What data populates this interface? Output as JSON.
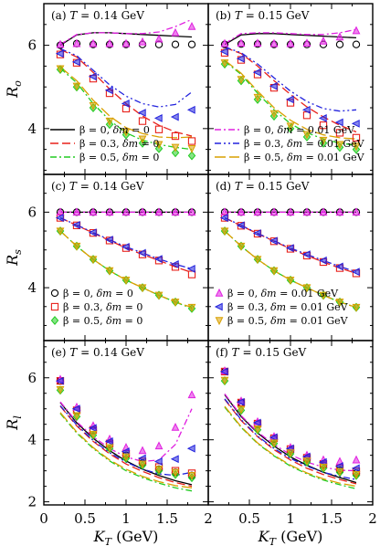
{
  "figure": {
    "x_axis_label": "K_T (GeV)",
    "x_ticks": [
      "0",
      "0.5",
      "1",
      "1.5",
      "2"
    ],
    "row_labels": [
      "R_o",
      "R_s",
      "R_l"
    ],
    "row_y_ticks": [
      [
        "4",
        "6"
      ],
      [
        "4",
        "6"
      ],
      [
        "2",
        "4",
        "6"
      ]
    ]
  },
  "legends": {
    "lines_dm0": [
      "β = 0, δm = 0",
      "β = 0.3, δm = 0",
      "β = 0.5, δm = 0"
    ],
    "lines_dm001": [
      "β = 0, δm = 0.01 GeV",
      "β = 0.3, δm = 0.01 GeV",
      "β = 0.5, δm = 0.01 GeV"
    ],
    "symbols_dm0": [
      "β = 0, δm = 0",
      "β = 0.3, δm = 0",
      "β = 0.5, δm = 0"
    ],
    "symbols_dm001": [
      "β = 0, δm = 0.01 GeV",
      "β = 0.3, δm = 0.01 GeV",
      "β = 0.5, δm = 0.01 GeV"
    ]
  },
  "colors": {
    "beta0_dm0": "#000000",
    "beta03_dm0": "#e8201a",
    "beta05_dm0": "#22cc22",
    "beta0_dm001": "#e020e0",
    "beta03_dm001": "#2222dd",
    "beta05_dm001": "#d9a000"
  },
  "chart_data": [
    {
      "type": "line",
      "panel": "(a) T = 0.14 GeV",
      "ylabel": "R_o",
      "xlim": [
        0,
        2
      ],
      "ylim": [
        2.9,
        7.0
      ],
      "x": [
        0.2,
        0.4,
        0.6,
        0.8,
        1.0,
        1.2,
        1.4,
        1.6,
        1.8
      ],
      "series": [
        {
          "name": "β = 0, δm = 0",
          "line": [
            6.0,
            6.25,
            6.3,
            6.3,
            6.28,
            6.26,
            6.24,
            6.22,
            6.2
          ],
          "symbols": [
            6.0,
            6.04,
            6.02,
            6.02,
            6.02,
            6.02,
            6.02,
            6.02,
            6.02
          ]
        },
        {
          "name": "β = 0.3, δm = 0",
          "line": [
            5.9,
            5.72,
            5.35,
            4.95,
            4.6,
            4.3,
            4.08,
            3.92,
            3.82
          ],
          "symbols": [
            5.78,
            5.58,
            5.2,
            4.85,
            4.48,
            4.18,
            3.98,
            3.82,
            3.7
          ]
        },
        {
          "name": "β = 0.5, δm = 0",
          "line": [
            5.45,
            5.1,
            4.6,
            4.2,
            3.9,
            3.72,
            3.62,
            3.55,
            3.5
          ],
          "symbols": [
            5.42,
            5.0,
            4.5,
            4.1,
            3.85,
            3.65,
            3.52,
            3.42,
            3.35
          ]
        },
        {
          "name": "β = 0, δm = 0.01 GeV",
          "line": [
            6.02,
            6.26,
            6.3,
            6.3,
            6.28,
            6.28,
            6.32,
            6.45,
            6.62
          ],
          "symbols": [
            6.02,
            6.04,
            6.04,
            6.04,
            6.04,
            6.08,
            6.15,
            6.3,
            6.45
          ]
        },
        {
          "name": "β = 0.3, δm = 0.01 GeV",
          "line": [
            5.92,
            5.75,
            5.4,
            5.05,
            4.78,
            4.6,
            4.52,
            4.58,
            4.88
          ],
          "symbols": [
            5.8,
            5.6,
            5.25,
            4.92,
            4.6,
            4.38,
            4.25,
            4.28,
            4.45
          ]
        },
        {
          "name": "β = 0.5, δm = 0.01 GeV",
          "line": [
            5.48,
            5.15,
            4.68,
            4.3,
            4.02,
            3.88,
            3.8,
            3.78,
            3.8
          ],
          "symbols": [
            5.44,
            5.02,
            4.55,
            4.18,
            3.92,
            3.75,
            3.62,
            3.55,
            3.52
          ]
        }
      ]
    },
    {
      "type": "line",
      "panel": "(b) T = 0.15 GeV",
      "ylabel": "R_o",
      "xlim": [
        0,
        2
      ],
      "ylim": [
        2.9,
        7.0
      ],
      "x": [
        0.2,
        0.4,
        0.6,
        0.8,
        1.0,
        1.2,
        1.4,
        1.6,
        1.8
      ],
      "series": [
        {
          "name": "β = 0, δm = 0",
          "line": [
            6.02,
            6.25,
            6.28,
            6.28,
            6.26,
            6.24,
            6.22,
            6.2,
            6.18
          ],
          "symbols": [
            6.02,
            6.03,
            6.03,
            6.02,
            6.02,
            6.02,
            6.02,
            6.02,
            6.02
          ]
        },
        {
          "name": "β = 0.3, δm = 0",
          "line": [
            5.95,
            5.8,
            5.5,
            5.15,
            4.82,
            4.52,
            4.28,
            4.08,
            3.92
          ],
          "symbols": [
            5.82,
            5.65,
            5.3,
            4.98,
            4.62,
            4.32,
            4.08,
            3.9,
            3.78
          ]
        },
        {
          "name": "β = 0.5, δm = 0",
          "line": [
            5.62,
            5.3,
            4.85,
            4.45,
            4.12,
            3.9,
            3.75,
            3.65,
            3.6
          ],
          "symbols": [
            5.55,
            5.15,
            4.7,
            4.3,
            4.0,
            3.8,
            3.65,
            3.55,
            3.5
          ]
        },
        {
          "name": "β = 0, δm = 0.01 GeV",
          "line": [
            6.04,
            6.28,
            6.3,
            6.3,
            6.28,
            6.26,
            6.26,
            6.3,
            6.38
          ],
          "symbols": [
            6.04,
            6.05,
            6.05,
            6.04,
            6.04,
            6.05,
            6.1,
            6.2,
            6.35
          ]
        },
        {
          "name": "β = 0.3, δm = 0.01 GeV",
          "line": [
            5.96,
            5.82,
            5.55,
            5.22,
            4.9,
            4.65,
            4.48,
            4.42,
            4.45
          ],
          "symbols": [
            5.85,
            5.68,
            5.35,
            5.02,
            4.7,
            4.45,
            4.25,
            4.15,
            4.12
          ]
        },
        {
          "name": "β = 0.5, δm = 0.01 GeV",
          "line": [
            5.64,
            5.33,
            4.9,
            4.5,
            4.2,
            3.98,
            3.85,
            3.78,
            3.75
          ],
          "symbols": [
            5.58,
            5.18,
            4.75,
            4.36,
            4.06,
            3.86,
            3.72,
            3.62,
            3.58
          ]
        }
      ]
    },
    {
      "type": "line",
      "panel": "(c) T = 0.14 GeV",
      "ylabel": "R_s",
      "xlim": [
        0,
        2
      ],
      "ylim": [
        2.6,
        7.0
      ],
      "x": [
        0.2,
        0.4,
        0.6,
        0.8,
        1.0,
        1.2,
        1.4,
        1.6,
        1.8
      ],
      "series": [
        {
          "name": "β = 0, δm = 0",
          "line": [
            6.0,
            6.0,
            6.0,
            6.0,
            6.0,
            6.0,
            6.0,
            6.0,
            6.0
          ],
          "symbols": [
            6.0,
            6.0,
            6.0,
            6.0,
            6.0,
            6.0,
            6.0,
            6.0,
            6.0
          ]
        },
        {
          "name": "β = 0.3, δm = 0",
          "line": [
            5.85,
            5.65,
            5.45,
            5.25,
            5.05,
            4.88,
            4.72,
            4.55,
            4.4
          ],
          "symbols": [
            5.85,
            5.65,
            5.45,
            5.25,
            5.05,
            4.88,
            4.72,
            4.55,
            4.35
          ]
        },
        {
          "name": "β = 0.5, δm = 0",
          "line": [
            5.5,
            5.1,
            4.75,
            4.45,
            4.2,
            4.0,
            3.8,
            3.62,
            3.45
          ],
          "symbols": [
            5.5,
            5.1,
            4.75,
            4.45,
            4.2,
            4.0,
            3.8,
            3.62,
            3.45
          ]
        },
        {
          "name": "β = 0, δm = 0.01 GeV",
          "line": [
            6.0,
            6.0,
            6.0,
            6.0,
            6.0,
            6.0,
            6.0,
            6.0,
            6.0
          ],
          "symbols": [
            6.0,
            6.0,
            6.0,
            6.0,
            6.0,
            6.0,
            6.0,
            6.0,
            6.0
          ]
        },
        {
          "name": "β = 0.3, δm = 0.01 GeV",
          "line": [
            5.85,
            5.66,
            5.46,
            5.27,
            5.08,
            4.92,
            4.76,
            4.62,
            4.5
          ],
          "symbols": [
            5.85,
            5.66,
            5.46,
            5.27,
            5.08,
            4.92,
            4.76,
            4.62,
            4.5
          ]
        },
        {
          "name": "β = 0.5, δm = 0.01 GeV",
          "line": [
            5.5,
            5.1,
            4.75,
            4.45,
            4.2,
            4.0,
            3.8,
            3.62,
            3.48
          ],
          "symbols": [
            5.5,
            5.1,
            4.75,
            4.45,
            4.2,
            4.0,
            3.8,
            3.62,
            3.48
          ]
        }
      ]
    },
    {
      "type": "line",
      "panel": "(d) T = 0.15 GeV",
      "ylabel": "R_s",
      "xlim": [
        0,
        2
      ],
      "ylim": [
        2.6,
        7.0
      ],
      "x": [
        0.2,
        0.4,
        0.6,
        0.8,
        1.0,
        1.2,
        1.4,
        1.6,
        1.8
      ],
      "series": [
        {
          "name": "β = 0, δm = 0",
          "line": [
            6.0,
            6.0,
            6.0,
            6.0,
            6.0,
            6.0,
            6.0,
            6.0,
            6.0
          ],
          "symbols": [
            6.0,
            6.0,
            6.0,
            6.0,
            6.0,
            6.0,
            6.0,
            6.0,
            6.0
          ]
        },
        {
          "name": "β = 0.3, δm = 0",
          "line": [
            5.85,
            5.64,
            5.43,
            5.23,
            5.03,
            4.85,
            4.68,
            4.52,
            4.38
          ],
          "symbols": [
            5.85,
            5.64,
            5.43,
            5.23,
            5.03,
            4.85,
            4.68,
            4.52,
            4.38
          ]
        },
        {
          "name": "β = 0.5, δm = 0",
          "line": [
            5.5,
            5.1,
            4.75,
            4.45,
            4.2,
            4.0,
            3.8,
            3.62,
            3.48
          ],
          "symbols": [
            5.5,
            5.1,
            4.75,
            4.45,
            4.2,
            4.0,
            3.8,
            3.62,
            3.48
          ]
        },
        {
          "name": "β = 0, δm = 0.01 GeV",
          "line": [
            6.0,
            6.0,
            6.0,
            6.0,
            6.0,
            6.0,
            6.0,
            6.0,
            6.0
          ],
          "symbols": [
            6.0,
            6.0,
            6.0,
            6.0,
            6.0,
            6.0,
            6.0,
            6.0,
            6.0
          ]
        },
        {
          "name": "β = 0.3, δm = 0.01 GeV",
          "line": [
            5.85,
            5.65,
            5.44,
            5.24,
            5.05,
            4.88,
            4.72,
            4.56,
            4.42
          ],
          "symbols": [
            5.85,
            5.65,
            5.44,
            5.24,
            5.05,
            4.88,
            4.72,
            4.56,
            4.42
          ]
        },
        {
          "name": "β = 0.5, δm = 0.01 GeV",
          "line": [
            5.5,
            5.1,
            4.75,
            4.45,
            4.2,
            4.0,
            3.8,
            3.62,
            3.48
          ],
          "symbols": [
            5.5,
            5.1,
            4.75,
            4.45,
            4.2,
            4.0,
            3.8,
            3.62,
            3.48
          ]
        }
      ]
    },
    {
      "type": "line",
      "panel": "(e) T = 0.14 GeV",
      "ylabel": "R_l",
      "xlim": [
        0,
        2
      ],
      "ylim": [
        1.9,
        7.2
      ],
      "x": [
        0.2,
        0.4,
        0.6,
        0.8,
        1.0,
        1.2,
        1.4,
        1.6,
        1.8
      ],
      "series": [
        {
          "name": "β = 0, δm = 0",
          "line": [
            5.2,
            4.55,
            4.05,
            3.65,
            3.32,
            3.05,
            2.85,
            2.68,
            2.55
          ],
          "symbols": [
            5.9,
            4.95,
            4.3,
            3.85,
            3.5,
            3.25,
            3.05,
            2.95,
            2.85
          ]
        },
        {
          "name": "β = 0.3, δm = 0",
          "line": [
            5.08,
            4.45,
            3.95,
            3.55,
            3.22,
            2.98,
            2.78,
            2.62,
            2.5
          ],
          "symbols": [
            5.9,
            4.95,
            4.32,
            3.88,
            3.55,
            3.3,
            3.12,
            3.0,
            2.92
          ]
        },
        {
          "name": "β = 0.5, δm = 0",
          "line": [
            4.85,
            4.22,
            3.72,
            3.32,
            3.0,
            2.78,
            2.6,
            2.45,
            2.35
          ],
          "symbols": [
            5.6,
            4.75,
            4.15,
            3.72,
            3.4,
            3.18,
            3.0,
            2.88,
            2.78
          ]
        },
        {
          "name": "β = 0, δm = 0.01 GeV",
          "line": [
            5.22,
            4.58,
            4.1,
            3.72,
            3.45,
            3.3,
            3.35,
            3.85,
            5.0
          ],
          "symbols": [
            5.95,
            5.05,
            4.45,
            4.02,
            3.75,
            3.65,
            3.8,
            4.4,
            5.45
          ]
        },
        {
          "name": "β = 0.3, δm = 0.01 GeV",
          "line": [
            5.1,
            4.48,
            3.98,
            3.58,
            3.28,
            3.05,
            2.9,
            2.85,
            2.95
          ],
          "symbols": [
            5.9,
            5.0,
            4.38,
            3.95,
            3.62,
            3.4,
            3.3,
            3.38,
            3.72
          ]
        },
        {
          "name": "β = 0.5, δm = 0.01 GeV",
          "line": [
            4.88,
            4.25,
            3.75,
            3.35,
            3.05,
            2.82,
            2.65,
            2.52,
            2.45
          ],
          "symbols": [
            5.62,
            4.78,
            4.18,
            3.75,
            3.45,
            3.22,
            3.05,
            2.95,
            2.85
          ]
        }
      ]
    },
    {
      "type": "line",
      "panel": "(f) T = 0.15 GeV",
      "ylabel": "R_l",
      "xlim": [
        0,
        2
      ],
      "ylim": [
        1.9,
        7.2
      ],
      "x": [
        0.2,
        0.4,
        0.6,
        0.8,
        1.0,
        1.2,
        1.4,
        1.6,
        1.8
      ],
      "series": [
        {
          "name": "β = 0, δm = 0",
          "line": [
            5.45,
            4.75,
            4.22,
            3.8,
            3.45,
            3.18,
            2.95,
            2.78,
            2.62
          ],
          "symbols": [
            6.2,
            5.2,
            4.5,
            4.02,
            3.65,
            3.38,
            3.18,
            3.02,
            2.92
          ]
        },
        {
          "name": "β = 0.3, δm = 0",
          "line": [
            5.3,
            4.62,
            4.1,
            3.68,
            3.35,
            3.08,
            2.88,
            2.72,
            2.58
          ],
          "symbols": [
            6.2,
            5.2,
            4.52,
            4.05,
            3.7,
            3.42,
            3.22,
            3.08,
            2.98
          ]
        },
        {
          "name": "β = 0.5, δm = 0",
          "line": [
            5.05,
            4.4,
            3.88,
            3.48,
            3.15,
            2.9,
            2.7,
            2.55,
            2.42
          ],
          "symbols": [
            5.9,
            4.95,
            4.32,
            3.88,
            3.55,
            3.28,
            3.08,
            2.95,
            2.85
          ]
        },
        {
          "name": "β = 0, δm = 0.01 GeV",
          "line": [
            5.48,
            4.78,
            4.25,
            3.85,
            3.52,
            3.28,
            3.12,
            3.02,
            3.0
          ],
          "symbols": [
            6.22,
            5.25,
            4.58,
            4.1,
            3.75,
            3.5,
            3.35,
            3.3,
            3.35
          ]
        },
        {
          "name": "β = 0.3, δm = 0.01 GeV",
          "line": [
            5.32,
            4.65,
            4.12,
            3.72,
            3.4,
            3.15,
            2.95,
            2.82,
            2.72
          ],
          "symbols": [
            6.2,
            5.22,
            4.55,
            4.08,
            3.72,
            3.46,
            3.28,
            3.15,
            3.08
          ]
        },
        {
          "name": "β = 0.5, δm = 0.01 GeV",
          "line": [
            5.08,
            4.42,
            3.9,
            3.5,
            3.18,
            2.93,
            2.74,
            2.6,
            2.5
          ],
          "symbols": [
            5.92,
            4.98,
            4.35,
            3.9,
            3.58,
            3.32,
            3.12,
            2.98,
            2.88
          ]
        }
      ]
    }
  ]
}
